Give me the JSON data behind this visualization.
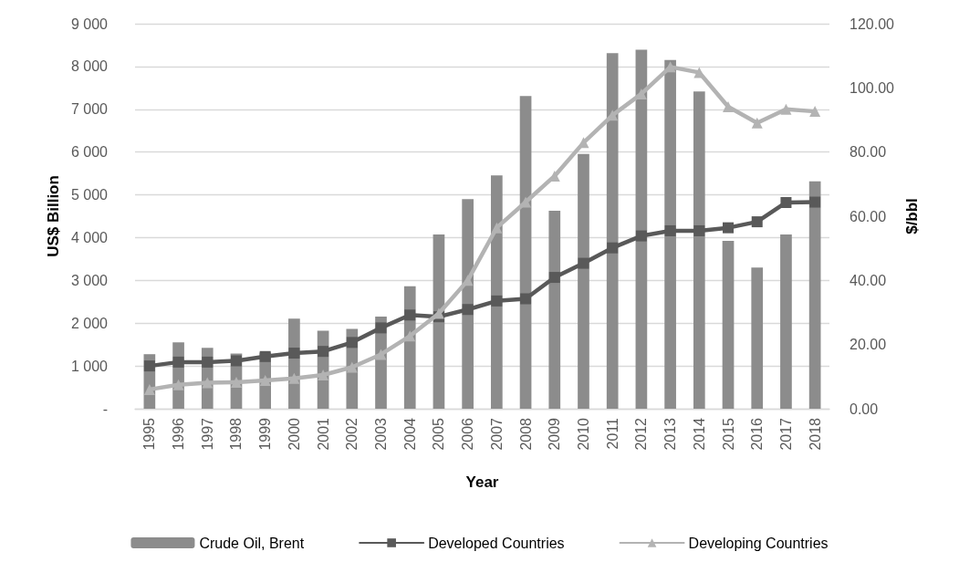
{
  "chart_data": {
    "type": "bar",
    "xlabel": "Year",
    "ylabel": "US$ Billion",
    "y2label": "$/bbl",
    "categories": [
      "1995",
      "1996",
      "1997",
      "1998",
      "1999",
      "2000",
      "2001",
      "2002",
      "2003",
      "2004",
      "2005",
      "2006",
      "2007",
      "2008",
      "2009",
      "2010",
      "2011",
      "2012",
      "2013",
      "2014",
      "2015",
      "2016",
      "2017",
      "2018"
    ],
    "series": [
      {
        "name": "Crude Oil, Brent",
        "axis": "y2",
        "color": "#8c8c8c",
        "values": [
          17.0,
          20.7,
          19.0,
          17.2,
          17.5,
          28.1,
          24.3,
          24.9,
          28.7,
          38.2,
          54.3,
          65.3,
          72.7,
          97.5,
          61.7,
          79.4,
          110.8,
          111.9,
          108.7,
          98.9,
          52.3,
          44.0,
          54.3,
          70.9
        ]
      },
      {
        "name": "Developed Countries",
        "type": "line",
        "marker": "square",
        "color": "#595959",
        "values": [
          1000,
          1090,
          1090,
          1120,
          1220,
          1300,
          1340,
          1550,
          1890,
          2190,
          2150,
          2320,
          2520,
          2570,
          3070,
          3400,
          3760,
          4040,
          4160,
          4160,
          4230,
          4370,
          4820,
          4830
        ]
      },
      {
        "name": "Developing Countries",
        "type": "line",
        "marker": "triangle",
        "color": "#b3b3b3",
        "values": [
          450,
          560,
          610,
          620,
          660,
          710,
          790,
          970,
          1270,
          1700,
          2230,
          3000,
          4230,
          4830,
          5440,
          6220,
          6860,
          7360,
          7990,
          7860,
          7060,
          6680,
          7000,
          6950
        ]
      }
    ],
    "ylim": [
      0,
      9000
    ],
    "yticks": [
      {
        "value": 0,
        "label": "-"
      },
      {
        "value": 1000,
        "label": "1 000"
      },
      {
        "value": 2000,
        "label": "2 000"
      },
      {
        "value": 3000,
        "label": "3 000"
      },
      {
        "value": 4000,
        "label": "4 000"
      },
      {
        "value": 5000,
        "label": "5 000"
      },
      {
        "value": 6000,
        "label": "6 000"
      },
      {
        "value": 7000,
        "label": "7 000"
      },
      {
        "value": 8000,
        "label": "8 000"
      },
      {
        "value": 9000,
        "label": "9 000"
      }
    ],
    "y2lim": [
      0,
      120
    ],
    "y2ticks": [
      {
        "value": 0,
        "label": "0.00"
      },
      {
        "value": 20,
        "label": "20.00"
      },
      {
        "value": 40,
        "label": "40.00"
      },
      {
        "value": 60,
        "label": "60.00"
      },
      {
        "value": 80,
        "label": "80.00"
      },
      {
        "value": 100,
        "label": "100.00"
      },
      {
        "value": 120,
        "label": "120.00"
      }
    ],
    "grid": "y",
    "legend": "bottom",
    "line_style": "solid"
  }
}
